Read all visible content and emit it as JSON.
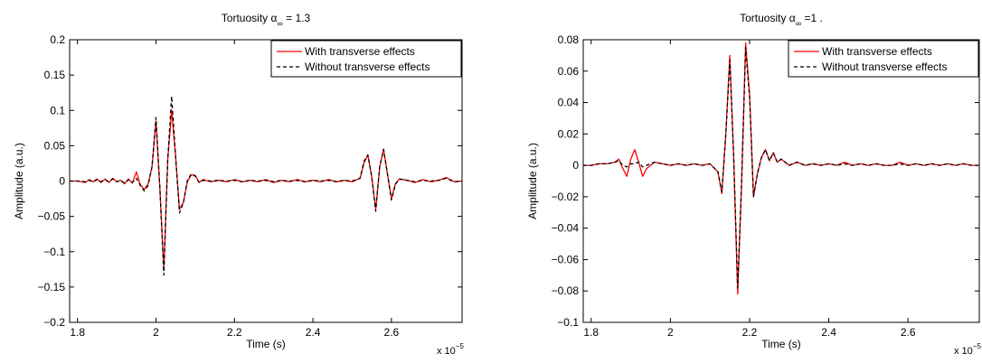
{
  "chart_data": [
    {
      "type": "line",
      "title": "Tortuosity α∞ = 1.3",
      "title_parts": {
        "text": "Tortuosity α",
        "sub": "∞",
        "tail": " = 1.3"
      },
      "xlabel": "Time (s)",
      "ylabel": "Amplitude (a.u.)",
      "x_multiplier": "x 10",
      "x_multiplier_exp": "−5",
      "xlim": [
        1.78,
        2.78
      ],
      "ylim": [
        -0.2,
        0.2
      ],
      "x_ticks": [
        1.8,
        2.0,
        2.2,
        2.4,
        2.6
      ],
      "x_tick_labels": [
        "1.8",
        "2",
        "2.2",
        "2.4",
        "2.6"
      ],
      "y_ticks": [
        -0.2,
        -0.15,
        -0.1,
        -0.05,
        0,
        0.05,
        0.1,
        0.15,
        0.2
      ],
      "y_tick_labels": [
        "−0.2",
        "−0.15",
        "−0.1",
        "−0.05",
        "0",
        "0.05",
        "0.1",
        "0.15",
        "0.2"
      ],
      "grid": false,
      "legend_position": "top-right",
      "series": [
        {
          "name": "With transverse effects",
          "color": "#ff0000",
          "dash": "solid",
          "x": [
            1.78,
            1.8,
            1.82,
            1.83,
            1.84,
            1.85,
            1.86,
            1.87,
            1.88,
            1.89,
            1.9,
            1.91,
            1.92,
            1.93,
            1.94,
            1.95,
            1.96,
            1.97,
            1.98,
            1.99,
            2.0,
            2.01,
            2.02,
            2.03,
            2.04,
            2.05,
            2.06,
            2.07,
            2.08,
            2.09,
            2.1,
            2.11,
            2.12,
            2.14,
            2.16,
            2.18,
            2.2,
            2.22,
            2.24,
            2.26,
            2.28,
            2.3,
            2.32,
            2.34,
            2.36,
            2.38,
            2.4,
            2.42,
            2.44,
            2.46,
            2.48,
            2.5,
            2.52,
            2.53,
            2.54,
            2.55,
            2.56,
            2.57,
            2.58,
            2.59,
            2.6,
            2.61,
            2.62,
            2.64,
            2.66,
            2.68,
            2.7,
            2.72,
            2.74,
            2.76,
            2.78
          ],
          "y": [
            0,
            0,
            -0.002,
            0.002,
            -0.001,
            0.003,
            -0.002,
            0.003,
            -0.002,
            0.004,
            -0.001,
            0.001,
            -0.004,
            0.003,
            -0.003,
            0.013,
            -0.005,
            -0.012,
            -0.004,
            0.02,
            0.085,
            -0.01,
            -0.125,
            0.03,
            0.1,
            0.035,
            -0.04,
            -0.03,
            -0.001,
            0.009,
            0.008,
            -0.002,
            0.002,
            -0.001,
            0.001,
            -0.001,
            0.002,
            -0.001,
            0.001,
            -0.001,
            0.002,
            -0.002,
            0.001,
            -0.001,
            0.002,
            -0.001,
            0.001,
            -0.001,
            0.002,
            -0.001,
            0.001,
            -0.001,
            0.004,
            0.025,
            0.037,
            0.005,
            -0.04,
            0.02,
            0.045,
            0.01,
            -0.025,
            -0.004,
            0.003,
            0.001,
            -0.002,
            0.002,
            -0.001,
            0.001,
            0.005,
            -0.001,
            0
          ]
        },
        {
          "name": "Without transverse effects",
          "color": "#000000",
          "dash": "dashed",
          "x": [
            1.78,
            1.8,
            1.82,
            1.83,
            1.84,
            1.85,
            1.86,
            1.87,
            1.88,
            1.89,
            1.9,
            1.91,
            1.92,
            1.93,
            1.94,
            1.95,
            1.96,
            1.97,
            1.98,
            1.99,
            2.0,
            2.01,
            2.02,
            2.03,
            2.04,
            2.05,
            2.06,
            2.07,
            2.08,
            2.09,
            2.1,
            2.11,
            2.12,
            2.14,
            2.16,
            2.18,
            2.2,
            2.22,
            2.24,
            2.26,
            2.28,
            2.3,
            2.32,
            2.34,
            2.36,
            2.38,
            2.4,
            2.42,
            2.44,
            2.46,
            2.48,
            2.5,
            2.52,
            2.53,
            2.54,
            2.55,
            2.56,
            2.57,
            2.58,
            2.59,
            2.6,
            2.61,
            2.62,
            2.64,
            2.66,
            2.68,
            2.7,
            2.72,
            2.74,
            2.76,
            2.78
          ],
          "y": [
            0,
            0,
            -0.001,
            0.001,
            -0.001,
            0.002,
            -0.001,
            0.002,
            -0.001,
            0.003,
            -0.001,
            0.001,
            -0.003,
            0.002,
            -0.002,
            0.004,
            -0.006,
            -0.014,
            -0.006,
            0.02,
            0.09,
            -0.01,
            -0.133,
            0.03,
            0.12,
            0.035,
            -0.045,
            -0.03,
            0.001,
            0.01,
            0.007,
            -0.002,
            0.001,
            0,
            0.001,
            0,
            0.001,
            -0.001,
            0.001,
            0,
            0.001,
            -0.001,
            0.001,
            0,
            0.001,
            -0.001,
            0.001,
            0,
            0.001,
            -0.001,
            0.001,
            0,
            0.004,
            0.028,
            0.037,
            0.005,
            -0.043,
            0.02,
            0.045,
            0.01,
            -0.027,
            -0.005,
            0.003,
            0.001,
            -0.001,
            0.001,
            0,
            0.001,
            0.004,
            -0.001,
            0
          ]
        }
      ]
    },
    {
      "type": "line",
      "title": "Tortuosity α∞ =1 .",
      "title_parts": {
        "text": "Tortuosity α",
        "sub": "∞",
        "tail": " =1 ."
      },
      "xlabel": "Time (s)",
      "ylabel": "Amplitude (a.u.)",
      "x_multiplier": "x 10",
      "x_multiplier_exp": "−5",
      "xlim": [
        1.78,
        2.78
      ],
      "ylim": [
        -0.1,
        0.08
      ],
      "x_ticks": [
        1.8,
        2.0,
        2.2,
        2.4,
        2.6
      ],
      "x_tick_labels": [
        "1.8",
        "2",
        "2.2",
        "2.4",
        "2.6"
      ],
      "y_ticks": [
        -0.1,
        -0.08,
        -0.06,
        -0.04,
        -0.02,
        0,
        0.02,
        0.04,
        0.06,
        0.08
      ],
      "y_tick_labels": [
        "−0.1",
        "−0.08",
        "−0.06",
        "−0.04",
        "−0.02",
        "0",
        "0.02",
        "0.04",
        "0.06",
        "0.08"
      ],
      "grid": false,
      "legend_position": "top-right",
      "series": [
        {
          "name": "With transverse effects",
          "color": "#ff0000",
          "dash": "solid",
          "x": [
            1.78,
            1.8,
            1.82,
            1.84,
            1.86,
            1.87,
            1.88,
            1.89,
            1.9,
            1.91,
            1.92,
            1.93,
            1.94,
            1.96,
            1.98,
            2.0,
            2.02,
            2.04,
            2.06,
            2.08,
            2.1,
            2.12,
            2.13,
            2.14,
            2.15,
            2.16,
            2.17,
            2.18,
            2.19,
            2.2,
            2.21,
            2.22,
            2.23,
            2.24,
            2.25,
            2.26,
            2.27,
            2.28,
            2.3,
            2.32,
            2.34,
            2.36,
            2.38,
            2.4,
            2.42,
            2.44,
            2.46,
            2.48,
            2.5,
            2.52,
            2.54,
            2.56,
            2.58,
            2.6,
            2.62,
            2.64,
            2.66,
            2.68,
            2.7,
            2.72,
            2.74,
            2.76,
            2.78
          ],
          "y": [
            0,
            0,
            0.001,
            0.001,
            0.002,
            0.004,
            -0.002,
            -0.007,
            0.004,
            0.01,
            0.002,
            -0.007,
            -0.002,
            0.002,
            0.001,
            0,
            0.001,
            0,
            0.001,
            0,
            0.001,
            -0.004,
            -0.018,
            0.02,
            0.07,
            0.005,
            -0.082,
            -0.01,
            0.078,
            0.045,
            -0.02,
            -0.005,
            0.005,
            0.01,
            0.003,
            0.008,
            0.002,
            0.004,
            0,
            0.002,
            0,
            0.001,
            0,
            0.001,
            0,
            0.002,
            0,
            0.001,
            0,
            0.001,
            0,
            0,
            0.002,
            0,
            0.001,
            0,
            0.001,
            0,
            0.001,
            0,
            0.001,
            0,
            0
          ]
        },
        {
          "name": "Without transverse effects",
          "color": "#000000",
          "dash": "dashed",
          "x": [
            1.78,
            1.8,
            1.82,
            1.84,
            1.86,
            1.87,
            1.88,
            1.89,
            1.9,
            1.91,
            1.92,
            1.93,
            1.94,
            1.96,
            1.98,
            2.0,
            2.02,
            2.04,
            2.06,
            2.08,
            2.1,
            2.12,
            2.13,
            2.14,
            2.15,
            2.16,
            2.17,
            2.18,
            2.19,
            2.2,
            2.21,
            2.22,
            2.23,
            2.24,
            2.25,
            2.26,
            2.27,
            2.28,
            2.3,
            2.32,
            2.34,
            2.36,
            2.38,
            2.4,
            2.42,
            2.44,
            2.46,
            2.48,
            2.5,
            2.52,
            2.54,
            2.56,
            2.58,
            2.6,
            2.62,
            2.64,
            2.66,
            2.68,
            2.7,
            2.72,
            2.74,
            2.76,
            2.78
          ],
          "y": [
            0,
            0,
            0.001,
            0.001,
            0.002,
            0.003,
            0,
            -0.001,
            0.001,
            0.001,
            0.002,
            -0.001,
            0,
            0.002,
            0.001,
            0,
            0.001,
            0,
            0.001,
            0,
            0.001,
            -0.004,
            -0.017,
            0.02,
            0.067,
            0.005,
            -0.078,
            -0.01,
            0.075,
            0.043,
            -0.02,
            -0.005,
            0.005,
            0.01,
            0.003,
            0.008,
            0.002,
            0.004,
            0,
            0.002,
            0,
            0.001,
            0,
            0.001,
            0,
            0.001,
            0,
            0.001,
            0,
            0.001,
            0,
            0,
            0.001,
            0,
            0.001,
            0,
            0.001,
            0,
            0.001,
            0,
            0.001,
            0,
            0
          ]
        }
      ]
    }
  ]
}
